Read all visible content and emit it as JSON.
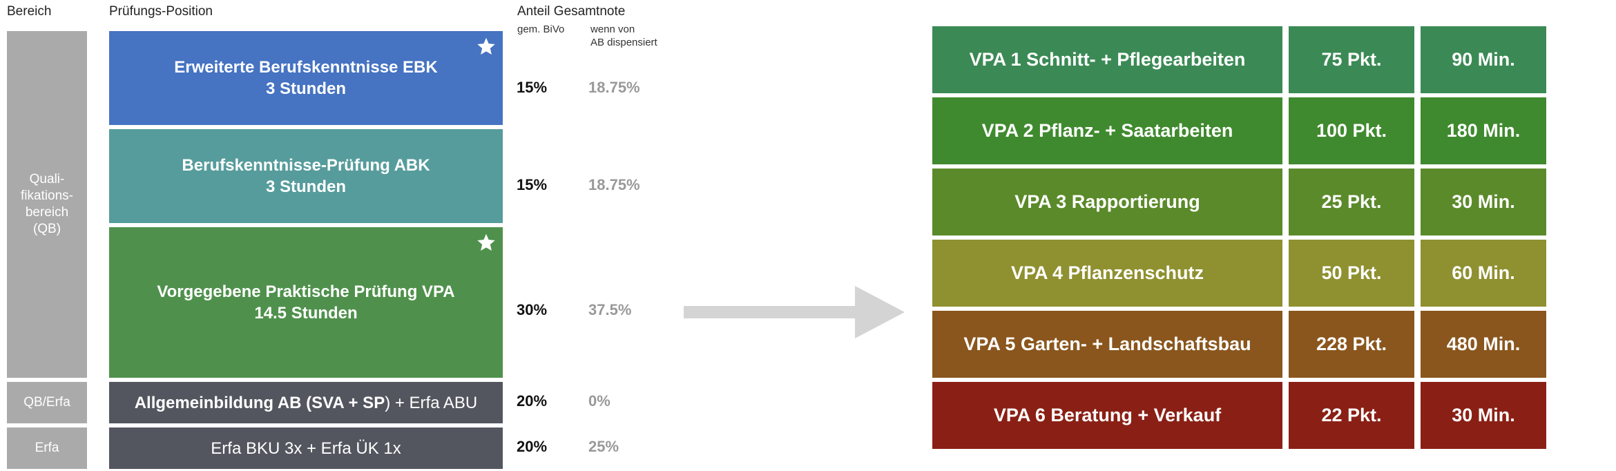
{
  "headers": {
    "bereich": "Bereich",
    "position": "Prüfungs-Position",
    "anteil": "Anteil Gesamtnote",
    "bivo": "gem. BiVo",
    "dispensiert_1": "wenn von",
    "dispensiert_2": "AB dispensiert"
  },
  "areas": {
    "qb": [
      "Quali-",
      "fikations-",
      "bereich",
      "(QB)"
    ],
    "qb_erfa": "QB/Erfa",
    "erfa": "Erfa"
  },
  "blocks": {
    "ebk_title": "Erweiterte Berufskenntnisse EBK",
    "ebk_duration": "3 Stunden",
    "abk_title": "Berufskenntnisse-Prüfung ABK",
    "abk_duration": "3 Stunden",
    "vpa_title": "Vorgegebene Praktische Prüfung VPA",
    "vpa_duration": "14.5 Stunden",
    "ab_part1": "Allgemeinbildung AB (",
    "ab_part2": "SVA + SP",
    "ab_part3": ") + Erfa ABU",
    "erfa_text": "Erfa BKU 3x + Erfa ÜK 1x"
  },
  "percentages": [
    {
      "bivo": "15%",
      "dispensiert": "18.75%"
    },
    {
      "bivo": "15%",
      "dispensiert": "18.75%"
    },
    {
      "bivo": "30%",
      "dispensiert": "37.5%"
    },
    {
      "bivo": "20%",
      "dispensiert": "0%"
    },
    {
      "bivo": "20%",
      "dispensiert": "25%"
    }
  ],
  "vpa_table": [
    {
      "name": "VPA 1 Schnitt- + Pflegearbeiten",
      "points": "75 Pkt.",
      "minutes": "90 Min.",
      "color": "#3b8a55"
    },
    {
      "name": "VPA 2 Pflanz- + Saatarbeiten",
      "points": "100 Pkt.",
      "minutes": "180 Min.",
      "color": "#3f8a2e"
    },
    {
      "name": "VPA 3 Rapportierung",
      "points": "25 Pkt.",
      "minutes": "30 Min.",
      "color": "#5b8a2a"
    },
    {
      "name": "VPA 4 Pflanzenschutz",
      "points": "50 Pkt.",
      "minutes": "60 Min.",
      "color": "#8f9030"
    },
    {
      "name": "VPA 5 Garten- + Landschaftsbau",
      "points": "228 Pkt.",
      "minutes": "480 Min.",
      "color": "#8a561d"
    },
    {
      "name": "VPA 6 Beratung + Verkauf",
      "points": "22 Pkt.",
      "minutes": "30 Min.",
      "color": "#8a2015"
    }
  ],
  "colors": {
    "ebk": "#4673c2",
    "abk": "#579c9c",
    "vpa": "#4f914c",
    "ab": "#54565f",
    "area": "#aaaaaa",
    "arrow": "#d4d4d4"
  }
}
